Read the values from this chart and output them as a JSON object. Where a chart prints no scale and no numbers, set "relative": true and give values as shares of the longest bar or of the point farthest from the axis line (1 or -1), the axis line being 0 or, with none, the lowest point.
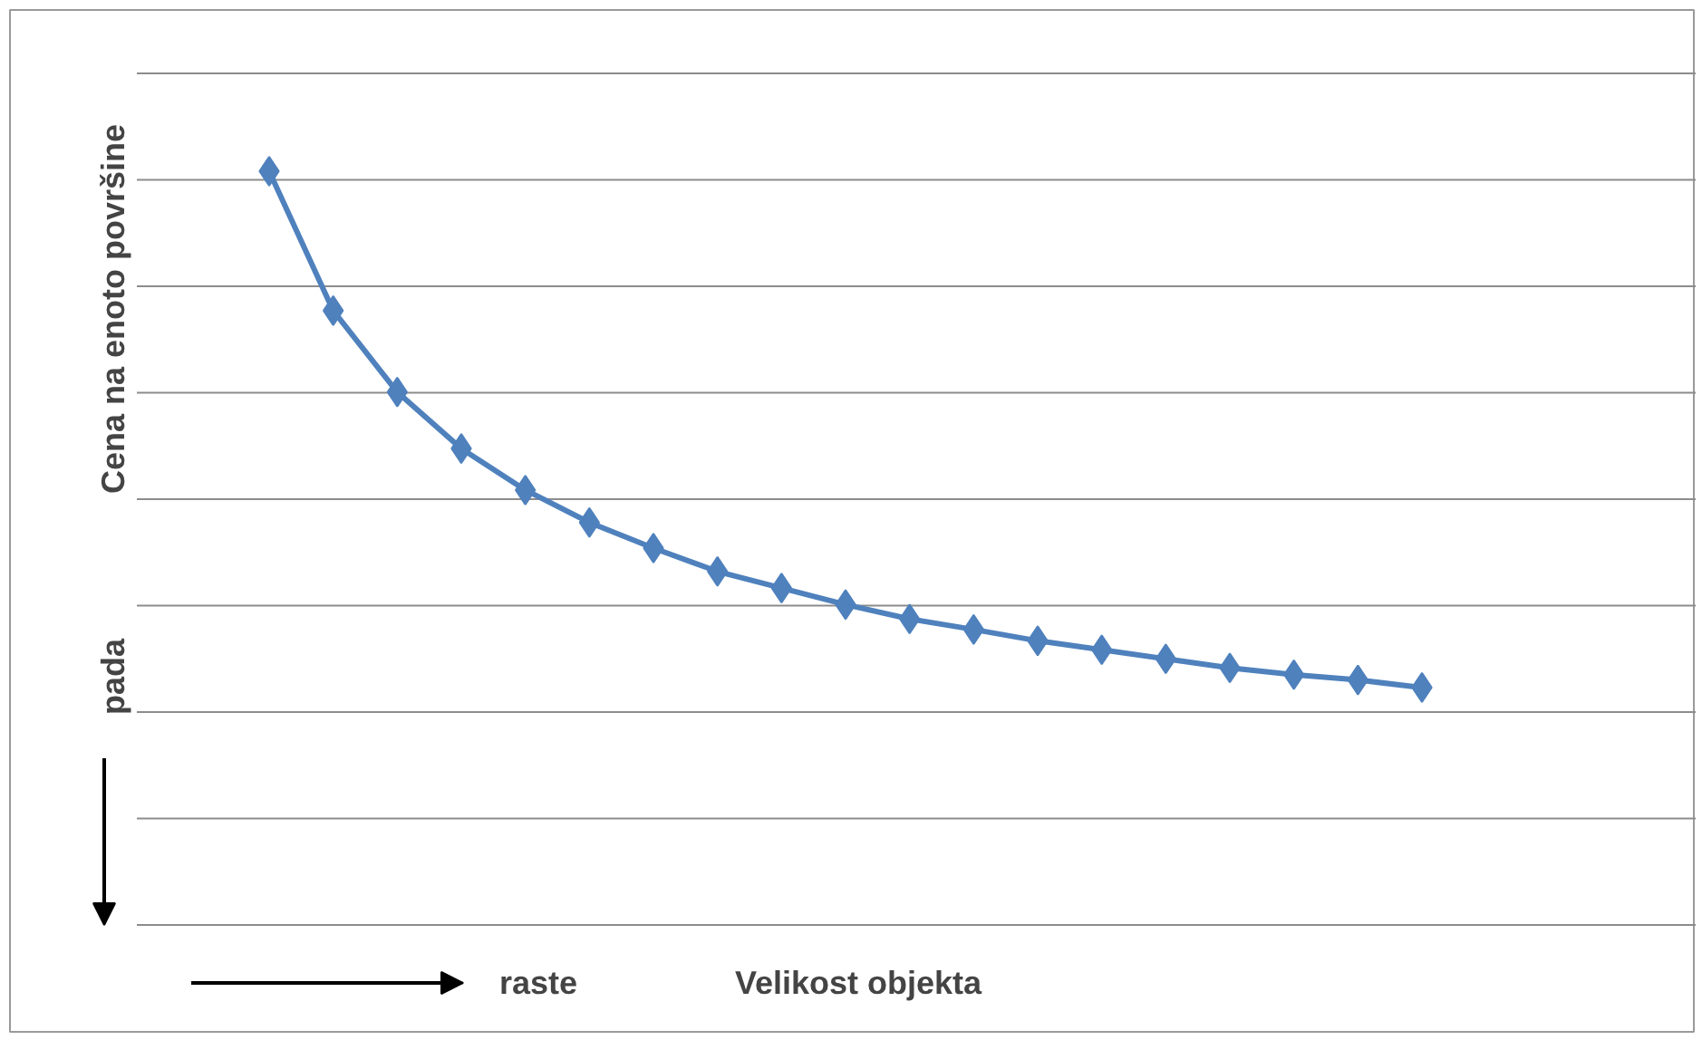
{
  "chart_data": {
    "type": "line",
    "relative": true,
    "ylabel": "Cena na enoto površine",
    "xlabel": "Velikost objekta",
    "categories": [
      null,
      null,
      null,
      null,
      null,
      null,
      null,
      null,
      null,
      null,
      null,
      null,
      null,
      null,
      null,
      null,
      null,
      null,
      null
    ],
    "series": [
      {
        "color": "#4f81bd",
        "values": [
          1,
          0.815,
          0.707,
          0.632,
          0.577,
          0.534,
          0.5,
          0.469,
          0.447,
          0.425,
          0.406,
          0.392,
          0.377,
          0.365,
          0.353,
          0.341,
          0.332,
          0.325,
          0.315
        ]
      }
    ],
    "annotations": [
      "raste",
      "pada"
    ],
    "grid": "y",
    "marker": "diamond",
    "line_style": "solid"
  }
}
